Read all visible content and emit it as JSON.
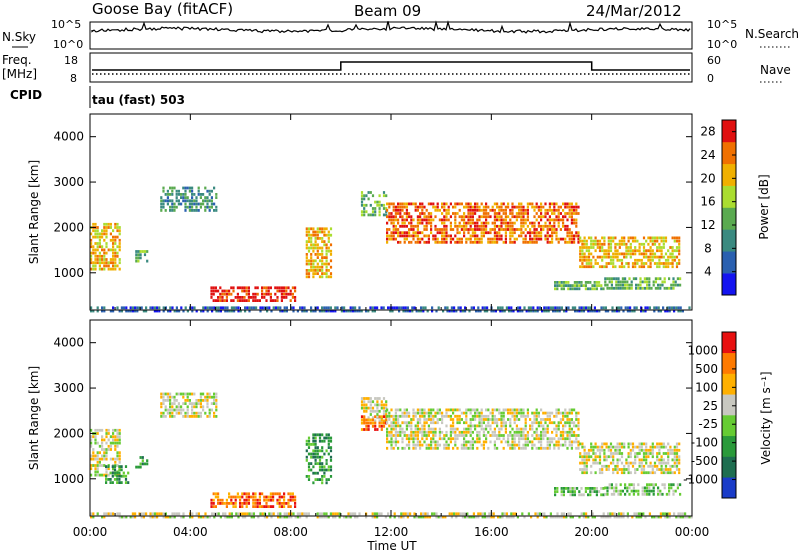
{
  "header": {
    "radar": "Goose Bay (fitACF)",
    "beam": "Beam 09",
    "date": "24/Mar/2012"
  },
  "top_panels": {
    "nsky_label": "N.Sky",
    "nsearch_label": "N.Search",
    "noise_ticks": [
      "10^5",
      "10^0"
    ],
    "freq_label_1": "Freq.",
    "freq_label_2": "[MHz]",
    "freq_ticks": [
      "18",
      "8"
    ],
    "nave_label": "Nave",
    "nave_ticks": [
      "60",
      "0"
    ],
    "cpid_label": "CPID",
    "cpid_text": "tau (fast) 503"
  },
  "chart_data": [
    {
      "type": "heatmap",
      "name": "power",
      "ylabel": "Slant Range [km]",
      "xlabel": "",
      "x_ticks": [
        "00:00",
        "04:00",
        "08:00",
        "12:00",
        "16:00",
        "20:00",
        "00:00"
      ],
      "xlim_hours": [
        0,
        24
      ],
      "y_ticks": [
        1000,
        2000,
        3000,
        4000
      ],
      "ylim_km": [
        180,
        4500
      ],
      "colorbar_label": "Power [dB]",
      "colorbar_ticks": [
        4,
        8,
        12,
        16,
        20,
        24,
        28
      ],
      "colorbar_range": [
        0,
        30
      ],
      "colors": [
        "#1414f0",
        "#2a60b0",
        "#3a8a80",
        "#5aaa50",
        "#aadd30",
        "#f0b000",
        "#f07000",
        "#e01010"
      ],
      "regions": [
        {
          "t": [
            0.0,
            1.2
          ],
          "r": [
            1050,
            2100
          ],
          "level": 5
        },
        {
          "t": [
            1.8,
            2.3
          ],
          "r": [
            1250,
            1500
          ],
          "level": 3
        },
        {
          "t": [
            2.8,
            5.0
          ],
          "r": [
            2400,
            2900
          ],
          "level": 2
        },
        {
          "t": [
            4.8,
            8.2
          ],
          "r": [
            350,
            700
          ],
          "level": 7
        },
        {
          "t": [
            8.6,
            9.6
          ],
          "r": [
            900,
            2000
          ],
          "level": 5
        },
        {
          "t": [
            10.8,
            11.8
          ],
          "r": [
            2300,
            2800
          ],
          "level": 3
        },
        {
          "t": [
            11.8,
            19.5
          ],
          "r": [
            1700,
            2550
          ],
          "level": 6
        },
        {
          "t": [
            19.5,
            23.5
          ],
          "r": [
            1100,
            1800
          ],
          "level": 5
        },
        {
          "t": [
            18.5,
            20.5
          ],
          "r": [
            650,
            820
          ],
          "level": 3
        },
        {
          "t": [
            20.5,
            23.5
          ],
          "r": [
            650,
            900
          ],
          "level": 3
        },
        {
          "t": [
            0.0,
            24.0
          ],
          "r": [
            180,
            260
          ],
          "level": 1
        }
      ]
    },
    {
      "type": "heatmap",
      "name": "velocity",
      "ylabel": "Slant Range [km]",
      "xlabel": "Time UT",
      "x_ticks": [
        "00:00",
        "04:00",
        "08:00",
        "12:00",
        "16:00",
        "20:00",
        "00:00"
      ],
      "xlim_hours": [
        0,
        24
      ],
      "y_ticks": [
        1000,
        2000,
        3000,
        4000
      ],
      "ylim_km": [
        180,
        4500
      ],
      "colorbar_label": "Velocity [m s⁻¹]",
      "colorbar_ticks": [
        1000,
        500,
        100,
        25,
        -25,
        -100,
        -500,
        -1000
      ],
      "colors": [
        "#1a3cc8",
        "#1e6e50",
        "#2a9a3a",
        "#66cc33",
        "#c8c8c0",
        "#ffb000",
        "#ff7a00",
        "#e81010"
      ],
      "regions": [
        {
          "t": [
            0.0,
            1.2
          ],
          "r": [
            1050,
            2100
          ],
          "level": 4
        },
        {
          "t": [
            0.6,
            1.5
          ],
          "r": [
            900,
            1300
          ],
          "level": 2
        },
        {
          "t": [
            1.8,
            2.3
          ],
          "r": [
            1250,
            1500
          ],
          "level": 2
        },
        {
          "t": [
            2.8,
            5.0
          ],
          "r": [
            2400,
            2900
          ],
          "level": 4
        },
        {
          "t": [
            4.8,
            8.2
          ],
          "r": [
            350,
            700
          ],
          "level": 6
        },
        {
          "t": [
            8.6,
            9.6
          ],
          "r": [
            900,
            2000
          ],
          "level": 2
        },
        {
          "t": [
            10.8,
            11.8
          ],
          "r": [
            2300,
            2800
          ],
          "level": 4
        },
        {
          "t": [
            10.8,
            11.8
          ],
          "r": [
            2100,
            2400
          ],
          "level": 6
        },
        {
          "t": [
            11.8,
            19.5
          ],
          "r": [
            1700,
            2550
          ],
          "level": 4
        },
        {
          "t": [
            19.5,
            23.5
          ],
          "r": [
            1100,
            1800
          ],
          "level": 4
        },
        {
          "t": [
            18.5,
            20.5
          ],
          "r": [
            650,
            820
          ],
          "level": 3
        },
        {
          "t": [
            20.5,
            23.5
          ],
          "r": [
            650,
            900
          ],
          "level": 3
        },
        {
          "t": [
            0.0,
            24.0
          ],
          "r": [
            180,
            260
          ],
          "level": 4
        }
      ]
    }
  ]
}
